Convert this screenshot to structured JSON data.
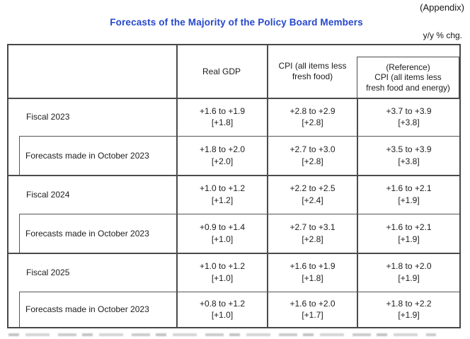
{
  "page": {
    "appendix_label": "(Appendix)",
    "title": "Forecasts of the Majority of the Policy Board Members",
    "unit_label": "y/y % chg."
  },
  "colors": {
    "title_blue": "#2547cb",
    "table_line_gray": "#4b4b4b",
    "text_black": "#1c1c1c"
  },
  "table": {
    "header": {
      "real_gdp": "Real GDP",
      "cpi_lines": [
        "CPI (all items less",
        "fresh food)"
      ],
      "reference_lines": [
        "(Reference)",
        "CPI (all items less",
        "fresh food and energy)"
      ]
    },
    "rows": [
      {
        "label": "Fiscal 2023",
        "kind": "fiscal",
        "cells": [
          [
            "+1.6 to +1.9",
            "[+1.8]"
          ],
          [
            "+2.8 to +2.9",
            "[+2.8]"
          ],
          [
            "+3.7 to +3.9",
            "[+3.8]"
          ]
        ]
      },
      {
        "label": "Forecasts made in October 2023",
        "kind": "revision",
        "cells": [
          [
            "+1.8 to +2.0",
            "[+2.0]"
          ],
          [
            "+2.7 to +3.0",
            "[+2.8]"
          ],
          [
            "+3.5 to +3.9",
            "[+3.8]"
          ]
        ]
      },
      {
        "label": "Fiscal 2024",
        "kind": "fiscal",
        "cells": [
          [
            "+1.0 to +1.2",
            "[+1.2]"
          ],
          [
            "+2.2 to +2.5",
            "[+2.4]"
          ],
          [
            "+1.6 to +2.1",
            "[+1.9]"
          ]
        ]
      },
      {
        "label": "Forecasts made in October 2023",
        "kind": "revision",
        "cells": [
          [
            "+0.9 to +1.4",
            "[+1.0]"
          ],
          [
            "+2.7 to +3.1",
            "[+2.8]"
          ],
          [
            "+1.6 to +2.1",
            "[+1.9]"
          ]
        ]
      },
      {
        "label": "Fiscal 2025",
        "kind": "fiscal",
        "cells": [
          [
            "+1.0 to +1.2",
            "[+1.0]"
          ],
          [
            "+1.6 to +1.9",
            "[+1.8]"
          ],
          [
            "+1.8 to +2.0",
            "[+1.9]"
          ]
        ]
      },
      {
        "label": "Forecasts made in October 2023",
        "kind": "revision",
        "cells": [
          [
            "+0.8 to +1.2",
            "[+1.0]"
          ],
          [
            "+1.6 to +2.0",
            "[+1.7]"
          ],
          [
            "+1.8 to +2.2",
            "[+1.9]"
          ]
        ]
      }
    ]
  }
}
